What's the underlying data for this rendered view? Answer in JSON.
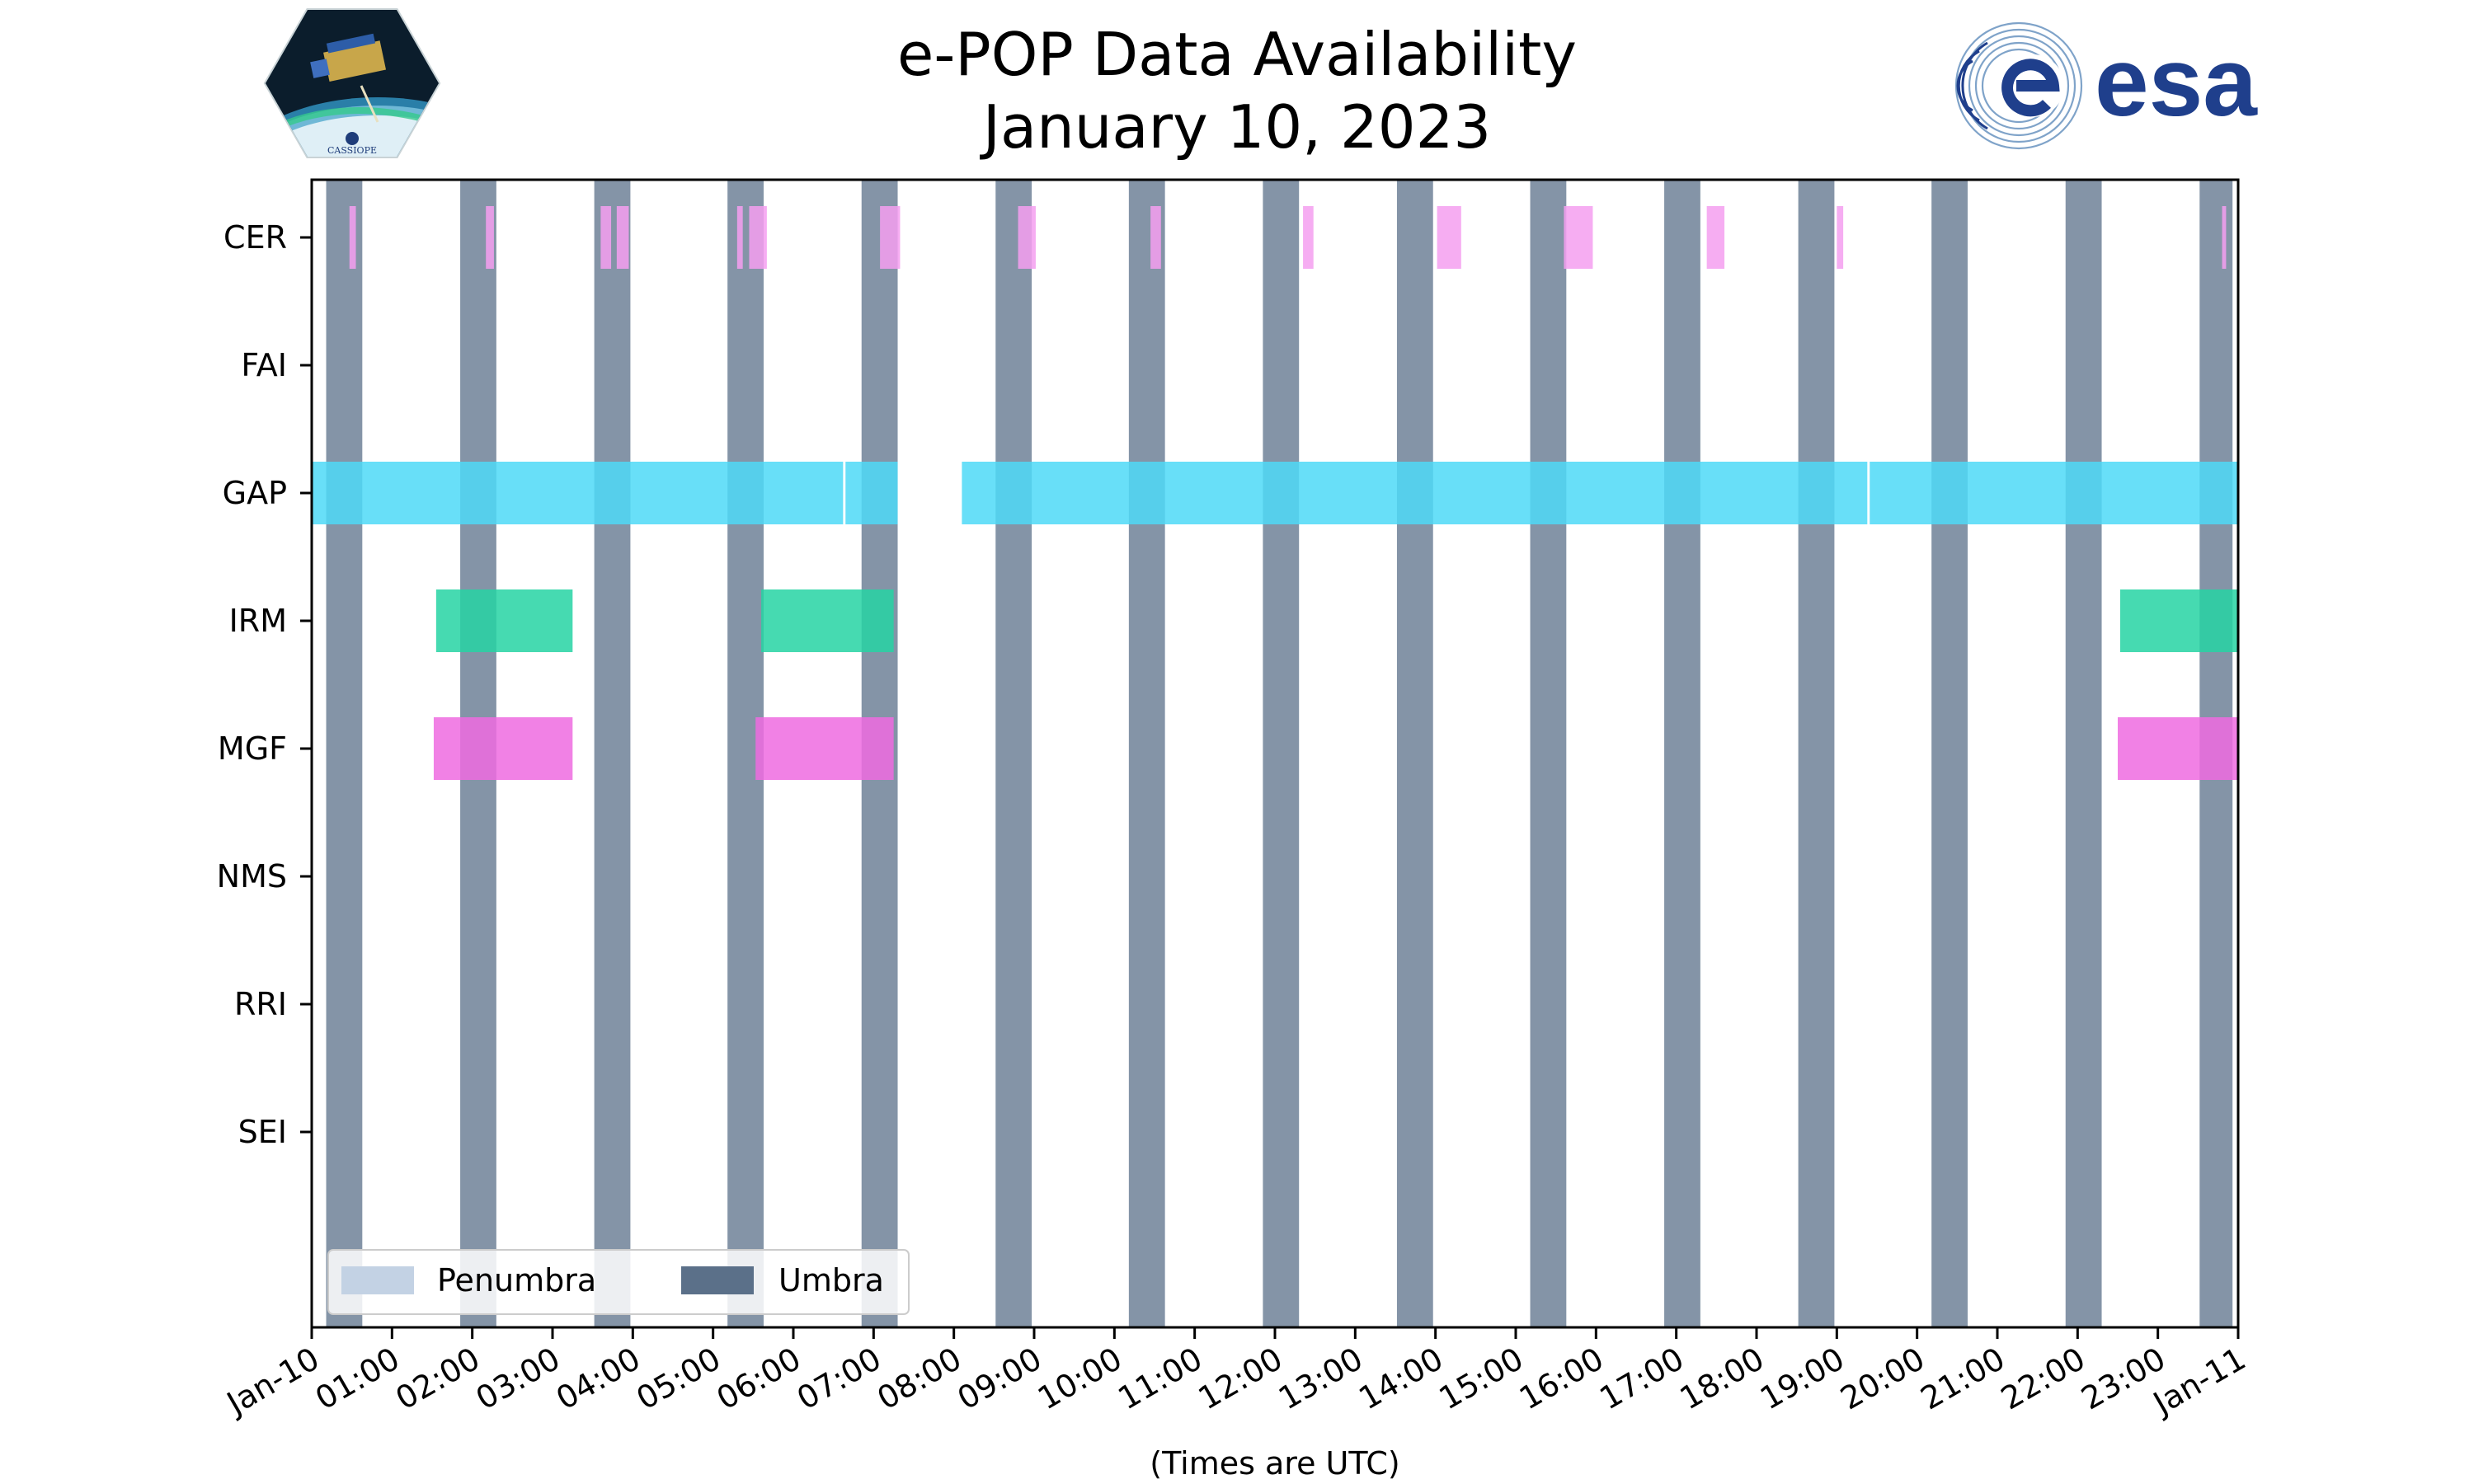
{
  "title": {
    "line1": "e-POP Data Availability",
    "line2": "January 10, 2023"
  },
  "logos": {
    "left": "CASSIOPE",
    "right": "esa"
  },
  "colors": {
    "umbra": "#5b7089",
    "penumbra": "#c3d2e4",
    "CER": "#f59ff0",
    "GAP": "#4dd9f7",
    "IRM": "#26d3a3",
    "MGF": "#ee6be0"
  },
  "chart_data": {
    "type": "timeline",
    "title": "e-POP Data Availability January 10, 2023",
    "xlabel": "(Times are UTC)",
    "x_unit": "hours UTC since 2023-01-10 00:00",
    "xlim": [
      0,
      24
    ],
    "x_ticks": [
      {
        "v": 0,
        "label": "Jan-10"
      },
      {
        "v": 1,
        "label": "01:00"
      },
      {
        "v": 2,
        "label": "02:00"
      },
      {
        "v": 3,
        "label": "03:00"
      },
      {
        "v": 4,
        "label": "04:00"
      },
      {
        "v": 5,
        "label": "05:00"
      },
      {
        "v": 6,
        "label": "06:00"
      },
      {
        "v": 7,
        "label": "07:00"
      },
      {
        "v": 8,
        "label": "08:00"
      },
      {
        "v": 9,
        "label": "09:00"
      },
      {
        "v": 10,
        "label": "10:00"
      },
      {
        "v": 11,
        "label": "11:00"
      },
      {
        "v": 12,
        "label": "12:00"
      },
      {
        "v": 13,
        "label": "13:00"
      },
      {
        "v": 14,
        "label": "14:00"
      },
      {
        "v": 15,
        "label": "15:00"
      },
      {
        "v": 16,
        "label": "16:00"
      },
      {
        "v": 17,
        "label": "17:00"
      },
      {
        "v": 18,
        "label": "18:00"
      },
      {
        "v": 19,
        "label": "19:00"
      },
      {
        "v": 20,
        "label": "20:00"
      },
      {
        "v": 21,
        "label": "21:00"
      },
      {
        "v": 22,
        "label": "22:00"
      },
      {
        "v": 23,
        "label": "23:00"
      },
      {
        "v": 24,
        "label": "Jan-11"
      }
    ],
    "instruments": [
      "CER",
      "FAI",
      "GAP",
      "IRM",
      "MGF",
      "NMS",
      "RRI",
      "SEI"
    ],
    "umbra": [
      [
        0.18,
        0.63
      ],
      [
        1.85,
        2.3
      ],
      [
        3.52,
        3.97
      ],
      [
        5.18,
        5.63
      ],
      [
        6.85,
        7.3
      ],
      [
        8.52,
        8.97
      ],
      [
        10.18,
        10.63
      ],
      [
        11.85,
        12.3
      ],
      [
        13.52,
        13.97
      ],
      [
        15.18,
        15.63
      ],
      [
        16.85,
        17.3
      ],
      [
        18.52,
        18.97
      ],
      [
        20.18,
        20.63
      ],
      [
        21.85,
        22.3
      ],
      [
        23.52,
        23.93
      ]
    ],
    "penumbra": [],
    "availability": {
      "CER": [
        [
          0.47,
          0.55
        ],
        [
          2.17,
          2.27
        ],
        [
          3.6,
          3.73
        ],
        [
          3.8,
          3.95
        ],
        [
          5.3,
          5.37
        ],
        [
          5.45,
          5.67
        ],
        [
          7.08,
          7.33
        ],
        [
          8.8,
          9.02
        ],
        [
          10.45,
          10.58
        ],
        [
          12.35,
          12.48
        ],
        [
          14.02,
          14.32
        ],
        [
          15.6,
          15.96
        ],
        [
          17.38,
          17.6
        ],
        [
          19.0,
          19.08
        ],
        [
          23.8,
          23.85
        ]
      ],
      "FAI": [],
      "GAP": [
        [
          0.0,
          6.62
        ],
        [
          6.65,
          7.3
        ],
        [
          8.1,
          19.38
        ],
        [
          19.41,
          24.0
        ]
      ],
      "IRM": [
        [
          1.55,
          3.25
        ],
        [
          5.6,
          7.25
        ],
        [
          22.53,
          24.0
        ]
      ],
      "MGF": [
        [
          1.52,
          3.25
        ],
        [
          5.53,
          7.25
        ],
        [
          22.5,
          24.0
        ]
      ],
      "NMS": [],
      "RRI": [],
      "SEI": []
    },
    "legend": {
      "position": "lower-left",
      "entries": [
        "Penumbra",
        "Umbra"
      ]
    }
  }
}
